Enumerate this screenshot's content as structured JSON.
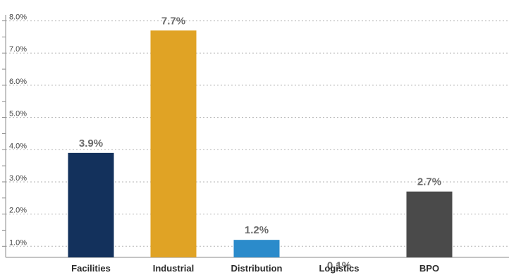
{
  "chart_data": {
    "type": "bar",
    "categories": [
      "Facilities",
      "Industrial",
      "Distribution",
      "Logistics",
      "BPO"
    ],
    "values": [
      3.9,
      7.7,
      1.2,
      0.1,
      2.7
    ],
    "value_labels": [
      "3.9%",
      "7.7%",
      "1.2%",
      "0.1%",
      "2.7%"
    ],
    "colors": [
      "#13315c",
      "#e0a325",
      "#2b8bcb",
      "#7cbde0",
      "#4a4a4a"
    ],
    "ylim": [
      0.7,
      8.1
    ],
    "yticks": [
      1.0,
      2.0,
      3.0,
      4.0,
      5.0,
      6.0,
      7.0,
      8.0
    ],
    "ytick_labels": [
      "1.0%",
      "2.0%",
      "3.0%",
      "4.0%",
      "5.0%",
      "6.0%",
      "7.0%",
      "8.0%"
    ],
    "grid": true,
    "title": "",
    "xlabel": "",
    "ylabel": ""
  }
}
